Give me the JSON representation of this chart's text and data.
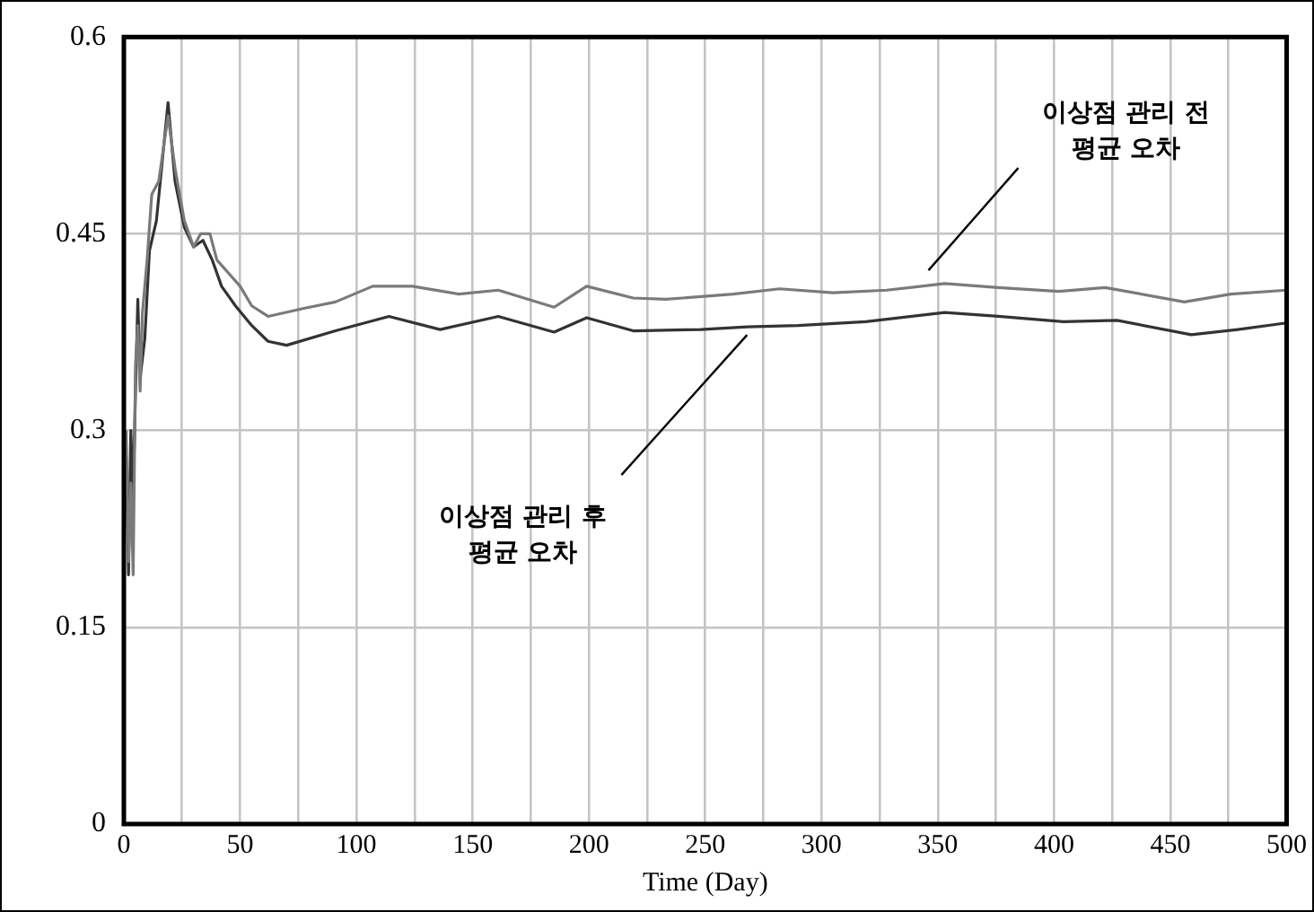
{
  "chart_data": {
    "type": "line",
    "xlabel": "Time (Day)",
    "xlim": [
      0,
      500
    ],
    "xticks": [
      0,
      {
        "value": 25,
        "label": null
      },
      50,
      {
        "value": 75,
        "label": null
      },
      100,
      {
        "value": 125,
        "label": null
      },
      150,
      {
        "value": 175,
        "label": null
      },
      200,
      {
        "value": 225,
        "label": null
      },
      250,
      {
        "value": 275,
        "label": null
      },
      300,
      {
        "value": 325,
        "label": null
      },
      350,
      {
        "value": 375,
        "label": null
      },
      400,
      {
        "value": 425,
        "label": null
      },
      450,
      {
        "value": 475,
        "label": null
      },
      500
    ],
    "ylim": [
      0,
      0.6
    ],
    "yticks": [
      0,
      0.15,
      0.3,
      0.45,
      0.6
    ],
    "grid": true,
    "legend": false,
    "marker": "none",
    "line_style": "solid",
    "series": [
      {
        "color": "#7a7a7a",
        "x": [
          1,
          2,
          3,
          4,
          5,
          6,
          7,
          8,
          10,
          12,
          15,
          19,
          22,
          26,
          30,
          33,
          37,
          40,
          45,
          50,
          55,
          62,
          77,
          91,
          107,
          124,
          144,
          161,
          185,
          199,
          219,
          233,
          262,
          282,
          305,
          328,
          353,
          376,
          402,
          422,
          456,
          476,
          500
        ],
        "values": [
          0.3,
          0.2,
          0.26,
          0.19,
          0.35,
          0.38,
          0.33,
          0.39,
          0.43,
          0.48,
          0.49,
          0.54,
          0.5,
          0.46,
          0.44,
          0.45,
          0.45,
          0.43,
          0.42,
          0.41,
          0.395,
          0.387,
          0.393,
          0.398,
          0.41,
          0.41,
          0.404,
          0.407,
          0.394,
          0.41,
          0.401,
          0.4,
          0.404,
          0.408,
          0.405,
          0.407,
          0.412,
          0.409,
          0.406,
          0.409,
          0.398,
          0.404,
          0.407
        ]
      },
      {
        "color": "#333333",
        "x": [
          1,
          2,
          3,
          4,
          5,
          6,
          7,
          9,
          11,
          14,
          19,
          22,
          26,
          30,
          34,
          38,
          42,
          48,
          55,
          62,
          70,
          91,
          114,
          136,
          161,
          185,
          199,
          219,
          248,
          268,
          290,
          319,
          353,
          376,
          404,
          427,
          459,
          479,
          500
        ],
        "values": [
          0.28,
          0.19,
          0.3,
          0.25,
          0.33,
          0.4,
          0.34,
          0.37,
          0.437,
          0.46,
          0.55,
          0.49,
          0.455,
          0.44,
          0.445,
          0.43,
          0.41,
          0.395,
          0.38,
          0.368,
          0.365,
          0.376,
          0.387,
          0.377,
          0.387,
          0.375,
          0.386,
          0.376,
          0.377,
          0.379,
          0.38,
          0.383,
          0.39,
          0.387,
          0.383,
          0.384,
          0.373,
          0.377,
          0.382
        ]
      }
    ],
    "annotations": [
      {
        "text": "이상점 관리 전\n평균 오차",
        "x": 346,
        "y": 0.418
      },
      {
        "text": "이상점 관리 후\n평균 오차",
        "x": 268,
        "y": 0.377
      }
    ]
  }
}
